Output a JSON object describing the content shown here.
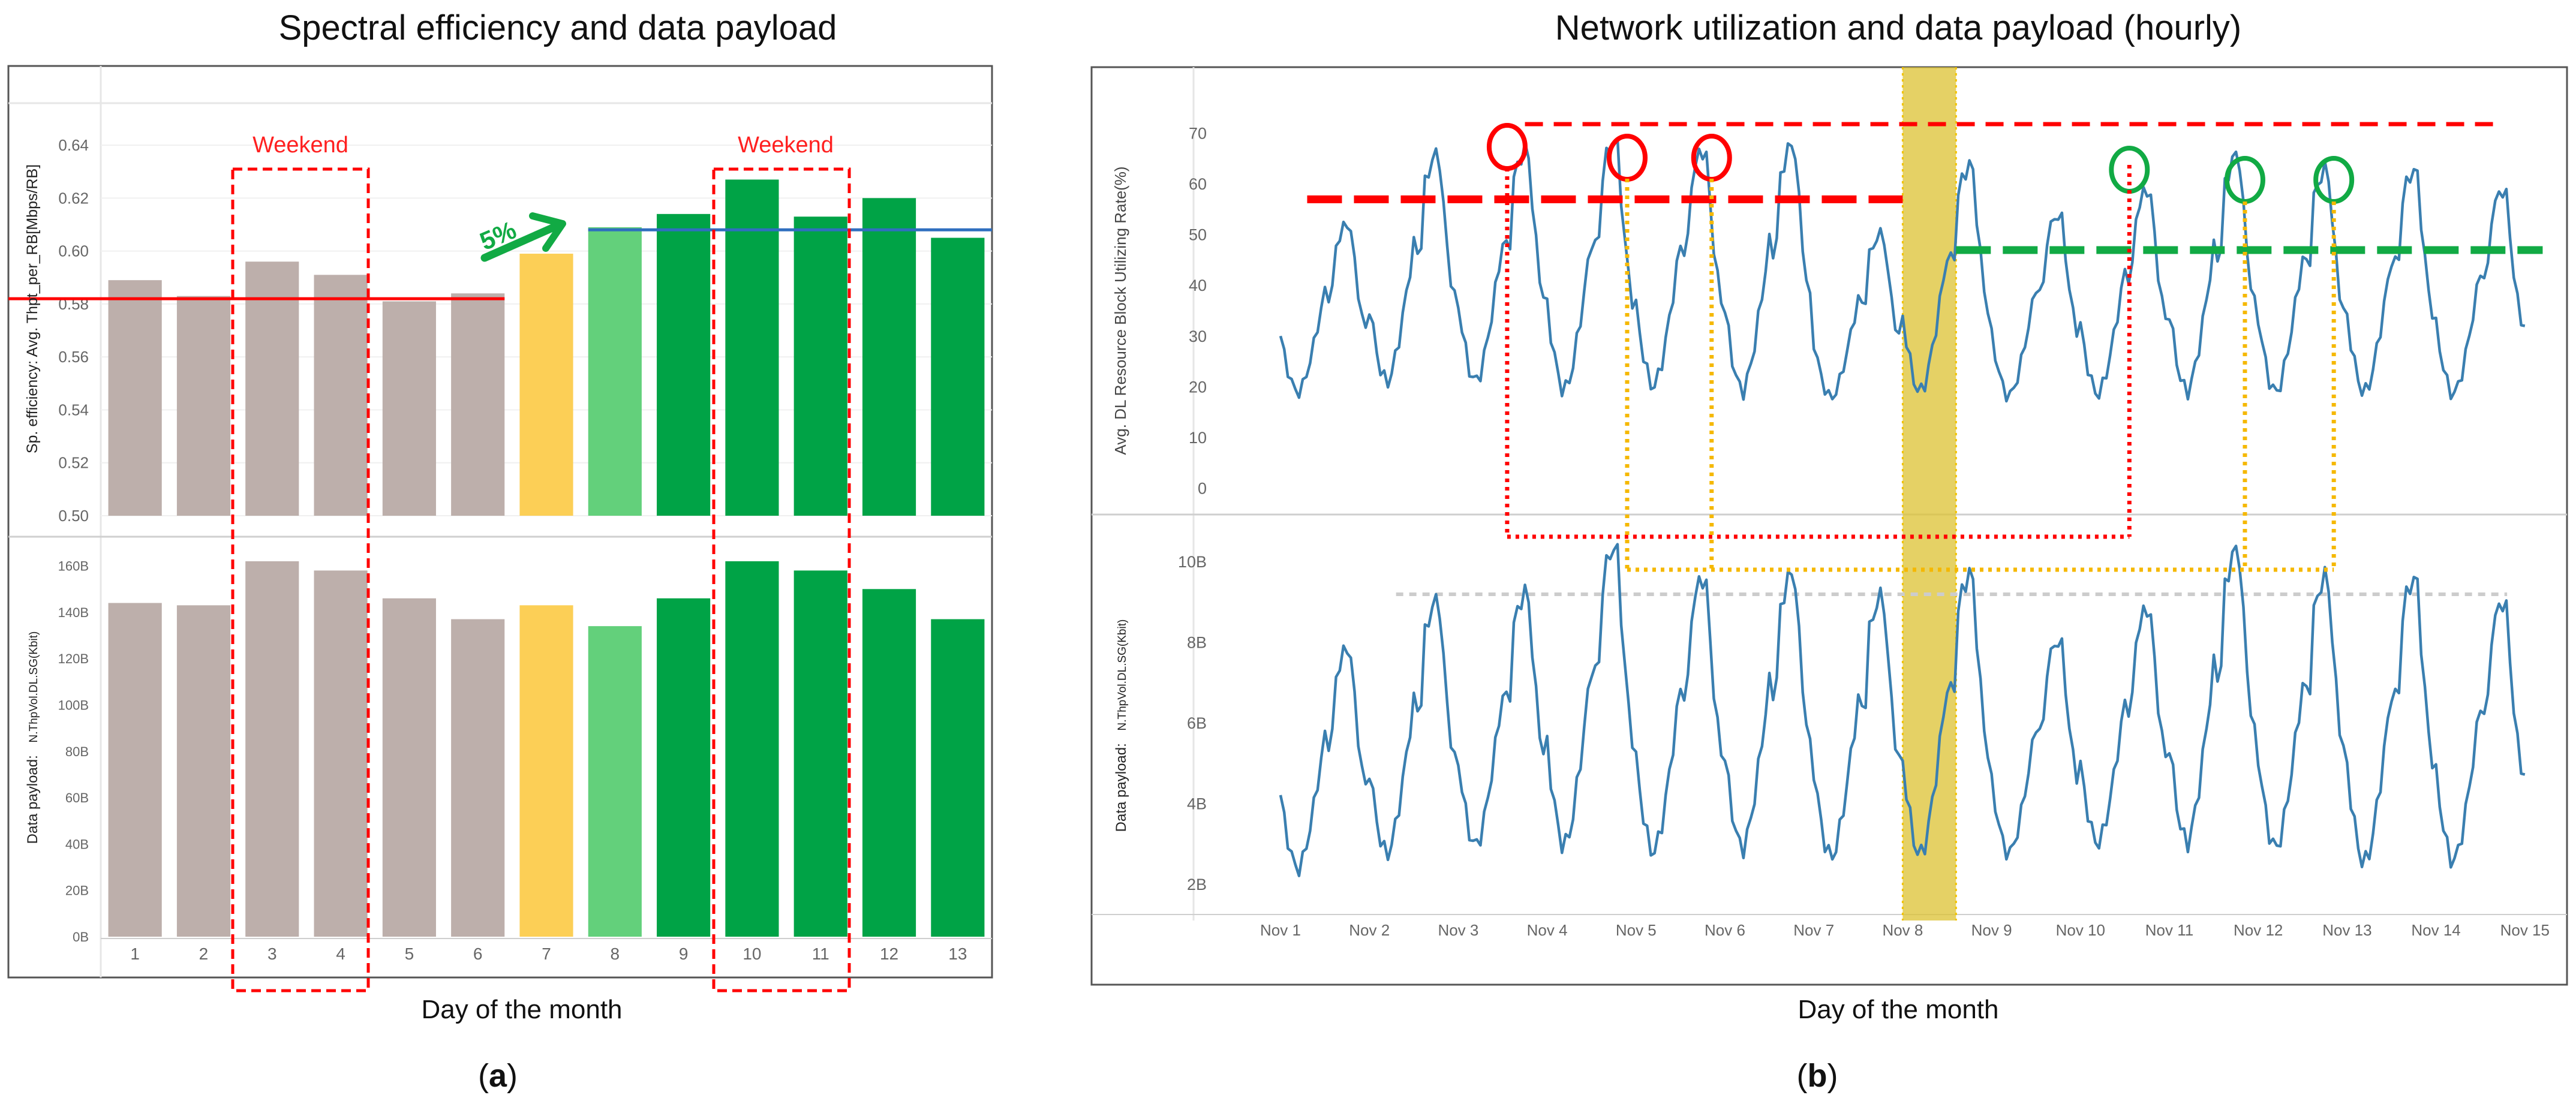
{
  "panel_a": {
    "title": "Spectral efficiency and data payload",
    "xlabel": "Day of the month",
    "caption_paren_open": "(",
    "caption_letter": "a",
    "caption_paren_close": ")",
    "weekend_label": "Weekend",
    "growth_label": "5%",
    "top_ylabel": "Sp. efficiency: Avg. Thpt_per_RB[Mbps/RB]",
    "bottom_ylabel_prefix": "Data payload:",
    "bottom_ylabel_metric": "N.ThpVol.DL.SG(Kbit)"
  },
  "panel_b": {
    "title": "Network utilization and data payload (hourly)",
    "xlabel": "Day of the month",
    "caption_paren_open": "(",
    "caption_letter": "b",
    "caption_paren_close": ")",
    "top_ylabel": "Avg. DL Resource Block Utilizing Rate(%)",
    "bottom_ylabel_prefix": "Data payload:",
    "bottom_ylabel_metric": "N.ThpVol.DL.SG(Kbit)"
  },
  "colors": {
    "weekday_before": "#bdafab",
    "transition": "#fccf56",
    "light_green": "#63d07b",
    "dark_green": "#00a346",
    "line": "#3a7fb0",
    "red": "#ff0000",
    "blue": "#2f6fbf",
    "highlight": "#dcc231",
    "dotted_yellow": "#f5b800",
    "green_dash": "#11aa44"
  },
  "chart_data": [
    {
      "type": "bar",
      "title": "Spectral efficiency",
      "ylabel": "Sp. efficiency: Avg. Thpt_per_RB[Mbps/RB]",
      "ylim": [
        0.5,
        0.645
      ],
      "ytick_values": [
        0.5,
        0.52,
        0.54,
        0.56,
        0.58,
        0.6,
        0.62,
        0.64
      ],
      "yticks": [
        "0.50",
        "0.52",
        "0.54",
        "0.56",
        "0.58",
        "0.60",
        "0.62",
        "0.64"
      ],
      "categories": [
        "1",
        "2",
        "3",
        "4",
        "5",
        "6",
        "7",
        "8",
        "9",
        "10",
        "11",
        "12",
        "13"
      ],
      "values": [
        0.589,
        0.583,
        0.596,
        0.591,
        0.581,
        0.584,
        0.599,
        0.609,
        0.614,
        0.627,
        0.613,
        0.62,
        0.605
      ],
      "bar_color_keys": [
        "weekday_before",
        "weekday_before",
        "weekday_before",
        "weekday_before",
        "weekday_before",
        "weekday_before",
        "transition",
        "light_green",
        "dark_green",
        "dark_green",
        "dark_green",
        "dark_green",
        "dark_green"
      ],
      "reference_lines": [
        {
          "name": "before average",
          "value": 0.582,
          "from_day": "1",
          "to_day": "6",
          "color_key": "red"
        },
        {
          "name": "after average",
          "value": 0.608,
          "from_day": "8",
          "to_day": "13",
          "color_key": "blue"
        }
      ]
    },
    {
      "type": "bar",
      "title": "Data payload",
      "ylabel": "Data payload: N.ThpVol.DL.SG(Kbit)",
      "ylim": [
        0,
        170
      ],
      "ytick_values": [
        0,
        20,
        40,
        60,
        80,
        100,
        120,
        140,
        160
      ],
      "yticks": [
        "0B",
        "20B",
        "40B",
        "60B",
        "80B",
        "100B",
        "120B",
        "140B",
        "160B"
      ],
      "categories": [
        "1",
        "2",
        "3",
        "4",
        "5",
        "6",
        "7",
        "8",
        "9",
        "10",
        "11",
        "12",
        "13"
      ],
      "values": [
        144,
        143,
        162,
        158,
        146,
        137,
        143,
        134,
        146,
        162,
        158,
        150,
        137
      ],
      "bar_color_keys": [
        "weekday_before",
        "weekday_before",
        "weekday_before",
        "weekday_before",
        "weekday_before",
        "weekday_before",
        "transition",
        "light_green",
        "dark_green",
        "dark_green",
        "dark_green",
        "dark_green",
        "dark_green"
      ]
    },
    {
      "type": "line",
      "title": "Avg. DL Resource Block Utilizing Rate(%)",
      "ylabel": "Avg. DL Resource Block Utilizing Rate(%)",
      "xlim": [
        1,
        15
      ],
      "ylim": [
        -3,
        73
      ],
      "ytick_values": [
        0,
        10,
        20,
        30,
        40,
        50,
        60,
        70
      ],
      "yticks": [
        "0",
        "10",
        "20",
        "30",
        "40",
        "50",
        "60",
        "70"
      ],
      "x_ticks": [
        "Nov 1",
        "Nov 2",
        "Nov 3",
        "Nov 4",
        "Nov 5",
        "Nov 6",
        "Nov 7",
        "Nov 8",
        "Nov 9",
        "Nov 10",
        "Nov 11",
        "Nov 12",
        "Nov 13",
        "Nov 14",
        "Nov 15"
      ],
      "daily_peaks": [
        53,
        67,
        68,
        70,
        68,
        69,
        51,
        65,
        55,
        60,
        67,
        64,
        64,
        60
      ],
      "daily_troughs": [
        16,
        17,
        17,
        15,
        16,
        15,
        15,
        15,
        15,
        15,
        15,
        15,
        15,
        15
      ],
      "highlight_range": [
        8,
        8.6
      ],
      "reference_lines": [
        {
          "name": "before level",
          "value": 57,
          "from": 1.3,
          "to": 8
        },
        {
          "name": "after level",
          "value": 47,
          "from": 8.6,
          "to": 15.2
        }
      ],
      "peak_markers_red": [
        3.55,
        4.9,
        5.85
      ],
      "peak_markers_green": [
        10.55,
        11.85,
        12.85
      ]
    },
    {
      "type": "line",
      "title": "Data payload (hourly)",
      "ylabel": "Data payload: N.ThpVol.DL.SG(Kbit)",
      "xlim": [
        1,
        15
      ],
      "ylim": [
        1.3,
        11
      ],
      "ytick_values": [
        2,
        4,
        6,
        8,
        10
      ],
      "yticks": [
        "2B",
        "4B",
        "6B",
        "8B",
        "10B"
      ],
      "x_ticks": [
        "Nov 1",
        "Nov 2",
        "Nov 3",
        "Nov 4",
        "Nov 5",
        "Nov 6",
        "Nov 7",
        "Nov 8",
        "Nov 9",
        "Nov 10",
        "Nov 11",
        "Nov 12",
        "Nov 13",
        "Nov 14",
        "Nov 15"
      ],
      "daily_peaks": [
        8.0,
        9.2,
        9.4,
        10.6,
        9.8,
        9.9,
        9.3,
        9.9,
        8.2,
        9.0,
        10.5,
        9.8,
        9.8,
        9.2
      ],
      "daily_troughs": [
        1.9,
        2.2,
        2.4,
        2.3,
        2.2,
        2.3,
        2.1,
        2.1,
        2.3,
        2.5,
        2.4,
        2.3,
        1.9,
        2.0
      ],
      "reference_lines": [
        {
          "name": "peak level",
          "value": 9.2,
          "from": 2.3,
          "to": 14.8
        }
      ]
    }
  ]
}
